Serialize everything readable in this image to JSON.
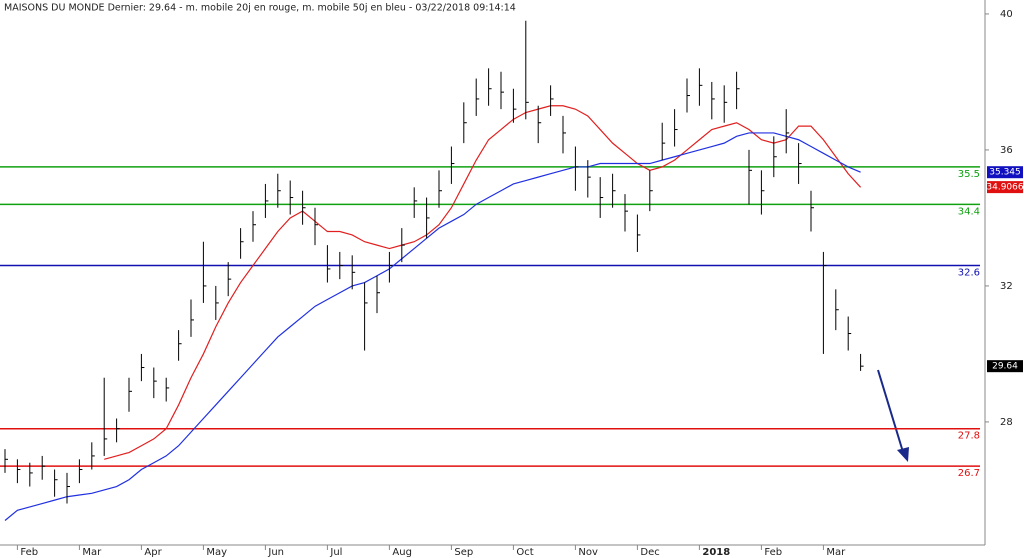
{
  "chart_data": {
    "type": "ohlc",
    "title": "MAISONS DU MONDE Dernier: 29.64 - m. mobile 20j en rouge, m. mobile 50j en bleu - 03/22/2018 09:14:14",
    "categories": [
      null,
      "Feb",
      null,
      null,
      null,
      null,
      "Mar",
      null,
      null,
      null,
      null,
      "Apr",
      null,
      null,
      null,
      null,
      "May",
      null,
      null,
      null,
      null,
      "Jun",
      null,
      null,
      null,
      null,
      "Jul",
      null,
      null,
      null,
      null,
      "Aug",
      null,
      null,
      null,
      null,
      "Sep",
      null,
      null,
      null,
      null,
      "Oct",
      null,
      null,
      null,
      null,
      "Nov",
      null,
      null,
      null,
      null,
      "Dec",
      null,
      null,
      null,
      null,
      "2018",
      null,
      null,
      null,
      null,
      "Feb",
      null,
      null,
      null,
      null,
      "Mar",
      null,
      null,
      null
    ],
    "high": [
      27.2,
      26.9,
      26.8,
      27.0,
      26.6,
      26.5,
      26.9,
      27.4,
      29.3,
      28.1,
      29.3,
      30.0,
      29.6,
      29.3,
      30.7,
      31.6,
      33.3,
      32.0,
      32.7,
      33.7,
      34.2,
      35.0,
      35.3,
      35.1,
      34.8,
      34.3,
      33.2,
      33.0,
      32.9,
      32.1,
      32.3,
      33.0,
      33.7,
      34.9,
      34.6,
      35.4,
      36.1,
      37.4,
      38.1,
      38.4,
      38.3,
      37.8,
      39.8,
      37.3,
      37.9,
      37.0,
      36.1,
      35.7,
      35.2,
      35.3,
      34.7,
      34.1,
      35.4,
      36.8,
      37.2,
      38.1,
      38.4,
      38.0,
      37.9,
      38.3,
      36.0,
      35.4,
      36.4,
      37.2,
      36.2,
      34.8,
      33.0,
      31.9,
      31.1,
      30.0
    ],
    "low": [
      26.5,
      26.2,
      26.1,
      26.3,
      25.8,
      25.6,
      26.2,
      26.6,
      27.0,
      27.4,
      28.3,
      29.2,
      28.7,
      28.6,
      29.8,
      30.5,
      31.5,
      31.0,
      31.7,
      32.8,
      33.3,
      34.0,
      34.3,
      34.1,
      33.8,
      33.2,
      32.1,
      32.2,
      31.9,
      30.1,
      31.2,
      32.1,
      32.7,
      34.0,
      33.4,
      34.3,
      35.0,
      36.2,
      37.0,
      37.3,
      37.2,
      36.8,
      36.9,
      36.2,
      37.0,
      35.9,
      34.8,
      34.6,
      34.0,
      34.3,
      33.6,
      33.0,
      34.2,
      35.7,
      36.1,
      37.1,
      37.3,
      36.9,
      36.8,
      37.2,
      34.4,
      34.1,
      35.2,
      35.9,
      35.0,
      33.6,
      30.0,
      30.7,
      30.1,
      29.5
    ],
    "close": [
      26.9,
      26.6,
      26.5,
      26.7,
      26.3,
      26.1,
      26.6,
      27.0,
      27.5,
      27.8,
      28.9,
      29.6,
      29.2,
      29.0,
      30.3,
      31.0,
      32.0,
      31.5,
      32.2,
      33.3,
      33.8,
      34.5,
      34.8,
      34.6,
      34.3,
      33.8,
      32.5,
      32.6,
      32.4,
      31.5,
      31.8,
      32.6,
      33.2,
      34.5,
      34.0,
      34.8,
      35.6,
      36.8,
      37.5,
      37.8,
      37.7,
      37.2,
      37.4,
      36.8,
      37.5,
      36.5,
      35.5,
      35.2,
      34.6,
      34.8,
      34.2,
      33.5,
      34.8,
      36.2,
      36.6,
      37.6,
      37.9,
      37.5,
      37.4,
      37.8,
      35.4,
      34.8,
      35.8,
      36.5,
      35.6,
      34.3,
      32.6,
      31.3,
      30.6,
      29.64
    ],
    "bar_color": "#000000",
    "moving_averages": [
      {
        "color": "#e02020",
        "values": [
          null,
          null,
          null,
          null,
          null,
          null,
          null,
          null,
          26.9,
          27.0,
          27.1,
          27.3,
          27.5,
          27.8,
          28.5,
          29.3,
          30.0,
          30.8,
          31.5,
          32.1,
          32.6,
          33.1,
          33.6,
          34.0,
          34.2,
          33.9,
          33.6,
          33.6,
          33.5,
          33.3,
          33.2,
          33.1,
          33.2,
          33.3,
          33.5,
          33.8,
          34.3,
          35.0,
          35.7,
          36.3,
          36.6,
          36.9,
          37.1,
          37.2,
          37.3,
          37.3,
          37.2,
          37.0,
          36.6,
          36.2,
          35.9,
          35.6,
          35.4,
          35.5,
          35.7,
          36.0,
          36.3,
          36.6,
          36.7,
          36.8,
          36.6,
          36.3,
          36.2,
          36.3,
          36.7,
          36.7,
          36.3,
          35.8,
          35.3,
          34.9
        ]
      },
      {
        "color": "#2030e0",
        "values": [
          25.1,
          25.4,
          25.5,
          25.6,
          25.7,
          25.8,
          25.85,
          25.9,
          26.0,
          26.1,
          26.3,
          26.6,
          26.8,
          27.0,
          27.3,
          27.7,
          28.1,
          28.5,
          28.9,
          29.3,
          29.7,
          30.1,
          30.5,
          30.8,
          31.1,
          31.4,
          31.6,
          31.8,
          32.0,
          32.1,
          32.3,
          32.5,
          32.8,
          33.1,
          33.4,
          33.7,
          33.9,
          34.1,
          34.4,
          34.6,
          34.8,
          35.0,
          35.1,
          35.2,
          35.3,
          35.4,
          35.5,
          35.5,
          35.6,
          35.6,
          35.6,
          35.6,
          35.6,
          35.7,
          35.8,
          35.9,
          36.0,
          36.1,
          36.2,
          36.4,
          36.5,
          36.5,
          36.5,
          36.4,
          36.3,
          36.1,
          35.9,
          35.7,
          35.5,
          35.345
        ]
      }
    ],
    "levels": [
      {
        "value": 35.5,
        "color": "#10a010"
      },
      {
        "value": 34.4,
        "color": "#10a010"
      },
      {
        "value": 32.6,
        "color": "#1010b0"
      },
      {
        "value": 27.8,
        "color": "#e01010"
      },
      {
        "value": 26.7,
        "color": "#e01010"
      }
    ],
    "badges": [
      {
        "value": 35.345,
        "color": "#1010c0"
      },
      {
        "value": 34.9066,
        "color": "#e01010"
      },
      {
        "value": 29.64,
        "color": "#000000"
      }
    ],
    "ylim": [
      24.38,
      40.41
    ],
    "yticks": [
      28,
      32,
      36,
      40
    ]
  }
}
